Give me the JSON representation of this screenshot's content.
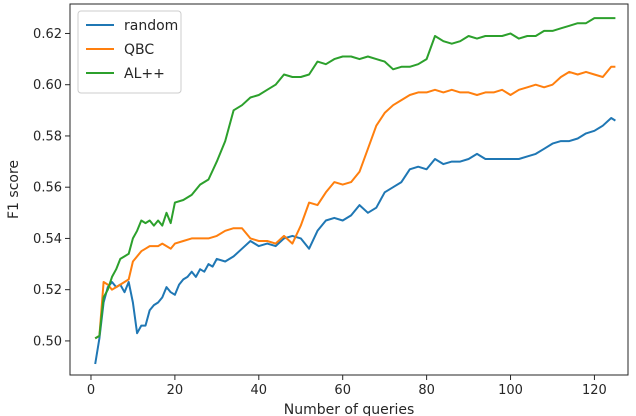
{
  "chart_data": {
    "type": "line",
    "title": "",
    "xlabel": "Number of queries",
    "ylabel": "F1 score",
    "xlim": [
      -5,
      128
    ],
    "ylim": [
      0.4867,
      0.6315
    ],
    "xticks": [
      0,
      20,
      40,
      60,
      80,
      100,
      120
    ],
    "yticks": [
      0.5,
      0.52,
      0.54,
      0.56,
      0.58,
      0.6,
      0.62
    ],
    "grid": false,
    "legend_position": "top-left",
    "series": [
      {
        "name": "random",
        "color": "#1f77b4",
        "points": [
          [
            1,
            0.491
          ],
          [
            2,
            0.501
          ],
          [
            3,
            0.515
          ],
          [
            4,
            0.521
          ],
          [
            5,
            0.523
          ],
          [
            6,
            0.521
          ],
          [
            7,
            0.522
          ],
          [
            8,
            0.519
          ],
          [
            9,
            0.523
          ],
          [
            10,
            0.515
          ],
          [
            11,
            0.503
          ],
          [
            12,
            0.506
          ],
          [
            13,
            0.506
          ],
          [
            14,
            0.512
          ],
          [
            15,
            0.514
          ],
          [
            16,
            0.515
          ],
          [
            17,
            0.517
          ],
          [
            18,
            0.521
          ],
          [
            19,
            0.519
          ],
          [
            20,
            0.518
          ],
          [
            21,
            0.522
          ],
          [
            22,
            0.524
          ],
          [
            23,
            0.525
          ],
          [
            24,
            0.527
          ],
          [
            25,
            0.525
          ],
          [
            26,
            0.528
          ],
          [
            27,
            0.527
          ],
          [
            28,
            0.53
          ],
          [
            29,
            0.529
          ],
          [
            30,
            0.532
          ],
          [
            32,
            0.531
          ],
          [
            34,
            0.533
          ],
          [
            36,
            0.536
          ],
          [
            38,
            0.539
          ],
          [
            40,
            0.537
          ],
          [
            42,
            0.538
          ],
          [
            44,
            0.537
          ],
          [
            46,
            0.54
          ],
          [
            48,
            0.541
          ],
          [
            50,
            0.54
          ],
          [
            52,
            0.536
          ],
          [
            54,
            0.543
          ],
          [
            56,
            0.547
          ],
          [
            58,
            0.548
          ],
          [
            60,
            0.547
          ],
          [
            62,
            0.549
          ],
          [
            64,
            0.553
          ],
          [
            66,
            0.55
          ],
          [
            68,
            0.552
          ],
          [
            70,
            0.558
          ],
          [
            72,
            0.56
          ],
          [
            74,
            0.562
          ],
          [
            76,
            0.567
          ],
          [
            78,
            0.568
          ],
          [
            80,
            0.567
          ],
          [
            82,
            0.571
          ],
          [
            84,
            0.569
          ],
          [
            86,
            0.57
          ],
          [
            88,
            0.57
          ],
          [
            90,
            0.571
          ],
          [
            92,
            0.573
          ],
          [
            94,
            0.571
          ],
          [
            96,
            0.571
          ],
          [
            98,
            0.571
          ],
          [
            100,
            0.571
          ],
          [
            102,
            0.571
          ],
          [
            104,
            0.572
          ],
          [
            106,
            0.573
          ],
          [
            108,
            0.575
          ],
          [
            110,
            0.577
          ],
          [
            112,
            0.578
          ],
          [
            114,
            0.578
          ],
          [
            116,
            0.579
          ],
          [
            118,
            0.581
          ],
          [
            120,
            0.582
          ],
          [
            122,
            0.584
          ],
          [
            124,
            0.587
          ],
          [
            125,
            0.586
          ]
        ]
      },
      {
        "name": "QBC",
        "color": "#ff7f0e",
        "points": [
          [
            1,
            0.501
          ],
          [
            2,
            0.502
          ],
          [
            3,
            0.523
          ],
          [
            4,
            0.522
          ],
          [
            5,
            0.52
          ],
          [
            6,
            0.521
          ],
          [
            7,
            0.522
          ],
          [
            8,
            0.523
          ],
          [
            9,
            0.524
          ],
          [
            10,
            0.531
          ],
          [
            11,
            0.533
          ],
          [
            12,
            0.535
          ],
          [
            13,
            0.536
          ],
          [
            14,
            0.537
          ],
          [
            15,
            0.537
          ],
          [
            16,
            0.537
          ],
          [
            17,
            0.538
          ],
          [
            18,
            0.537
          ],
          [
            19,
            0.536
          ],
          [
            20,
            0.538
          ],
          [
            22,
            0.539
          ],
          [
            24,
            0.54
          ],
          [
            26,
            0.54
          ],
          [
            28,
            0.54
          ],
          [
            30,
            0.541
          ],
          [
            32,
            0.543
          ],
          [
            34,
            0.544
          ],
          [
            36,
            0.544
          ],
          [
            38,
            0.54
          ],
          [
            40,
            0.539
          ],
          [
            42,
            0.539
          ],
          [
            44,
            0.538
          ],
          [
            46,
            0.541
          ],
          [
            48,
            0.538
          ],
          [
            50,
            0.545
          ],
          [
            52,
            0.554
          ],
          [
            54,
            0.553
          ],
          [
            56,
            0.558
          ],
          [
            58,
            0.562
          ],
          [
            60,
            0.561
          ],
          [
            62,
            0.562
          ],
          [
            64,
            0.566
          ],
          [
            66,
            0.575
          ],
          [
            68,
            0.584
          ],
          [
            70,
            0.589
          ],
          [
            72,
            0.592
          ],
          [
            74,
            0.594
          ],
          [
            76,
            0.596
          ],
          [
            78,
            0.597
          ],
          [
            80,
            0.597
          ],
          [
            82,
            0.598
          ],
          [
            84,
            0.597
          ],
          [
            86,
            0.598
          ],
          [
            88,
            0.597
          ],
          [
            90,
            0.597
          ],
          [
            92,
            0.596
          ],
          [
            94,
            0.597
          ],
          [
            96,
            0.597
          ],
          [
            98,
            0.598
          ],
          [
            100,
            0.596
          ],
          [
            102,
            0.598
          ],
          [
            104,
            0.599
          ],
          [
            106,
            0.6
          ],
          [
            108,
            0.599
          ],
          [
            110,
            0.6
          ],
          [
            112,
            0.603
          ],
          [
            114,
            0.605
          ],
          [
            116,
            0.604
          ],
          [
            118,
            0.605
          ],
          [
            120,
            0.604
          ],
          [
            122,
            0.603
          ],
          [
            124,
            0.607
          ],
          [
            125,
            0.607
          ]
        ]
      },
      {
        "name": "AL++",
        "color": "#2ca02c",
        "points": [
          [
            1,
            0.501
          ],
          [
            2,
            0.502
          ],
          [
            3,
            0.517
          ],
          [
            4,
            0.52
          ],
          [
            5,
            0.525
          ],
          [
            6,
            0.528
          ],
          [
            7,
            0.532
          ],
          [
            8,
            0.533
          ],
          [
            9,
            0.534
          ],
          [
            10,
            0.54
          ],
          [
            11,
            0.543
          ],
          [
            12,
            0.547
          ],
          [
            13,
            0.546
          ],
          [
            14,
            0.547
          ],
          [
            15,
            0.545
          ],
          [
            16,
            0.547
          ],
          [
            17,
            0.545
          ],
          [
            18,
            0.55
          ],
          [
            19,
            0.546
          ],
          [
            20,
            0.554
          ],
          [
            22,
            0.555
          ],
          [
            24,
            0.557
          ],
          [
            26,
            0.561
          ],
          [
            28,
            0.563
          ],
          [
            30,
            0.57
          ],
          [
            32,
            0.578
          ],
          [
            34,
            0.59
          ],
          [
            36,
            0.592
          ],
          [
            38,
            0.595
          ],
          [
            40,
            0.596
          ],
          [
            42,
            0.598
          ],
          [
            44,
            0.6
          ],
          [
            46,
            0.604
          ],
          [
            48,
            0.603
          ],
          [
            50,
            0.603
          ],
          [
            52,
            0.604
          ],
          [
            54,
            0.609
          ],
          [
            56,
            0.608
          ],
          [
            58,
            0.61
          ],
          [
            60,
            0.611
          ],
          [
            62,
            0.611
          ],
          [
            64,
            0.61
          ],
          [
            66,
            0.611
          ],
          [
            68,
            0.61
          ],
          [
            70,
            0.609
          ],
          [
            72,
            0.606
          ],
          [
            74,
            0.607
          ],
          [
            76,
            0.607
          ],
          [
            78,
            0.608
          ],
          [
            80,
            0.61
          ],
          [
            82,
            0.619
          ],
          [
            84,
            0.617
          ],
          [
            86,
            0.616
          ],
          [
            88,
            0.617
          ],
          [
            90,
            0.619
          ],
          [
            92,
            0.618
          ],
          [
            94,
            0.619
          ],
          [
            96,
            0.619
          ],
          [
            98,
            0.619
          ],
          [
            100,
            0.62
          ],
          [
            102,
            0.618
          ],
          [
            104,
            0.619
          ],
          [
            106,
            0.619
          ],
          [
            108,
            0.621
          ],
          [
            110,
            0.621
          ],
          [
            112,
            0.622
          ],
          [
            114,
            0.623
          ],
          [
            116,
            0.624
          ],
          [
            118,
            0.624
          ],
          [
            120,
            0.626
          ],
          [
            122,
            0.626
          ],
          [
            124,
            0.626
          ],
          [
            125,
            0.626
          ]
        ]
      }
    ]
  }
}
